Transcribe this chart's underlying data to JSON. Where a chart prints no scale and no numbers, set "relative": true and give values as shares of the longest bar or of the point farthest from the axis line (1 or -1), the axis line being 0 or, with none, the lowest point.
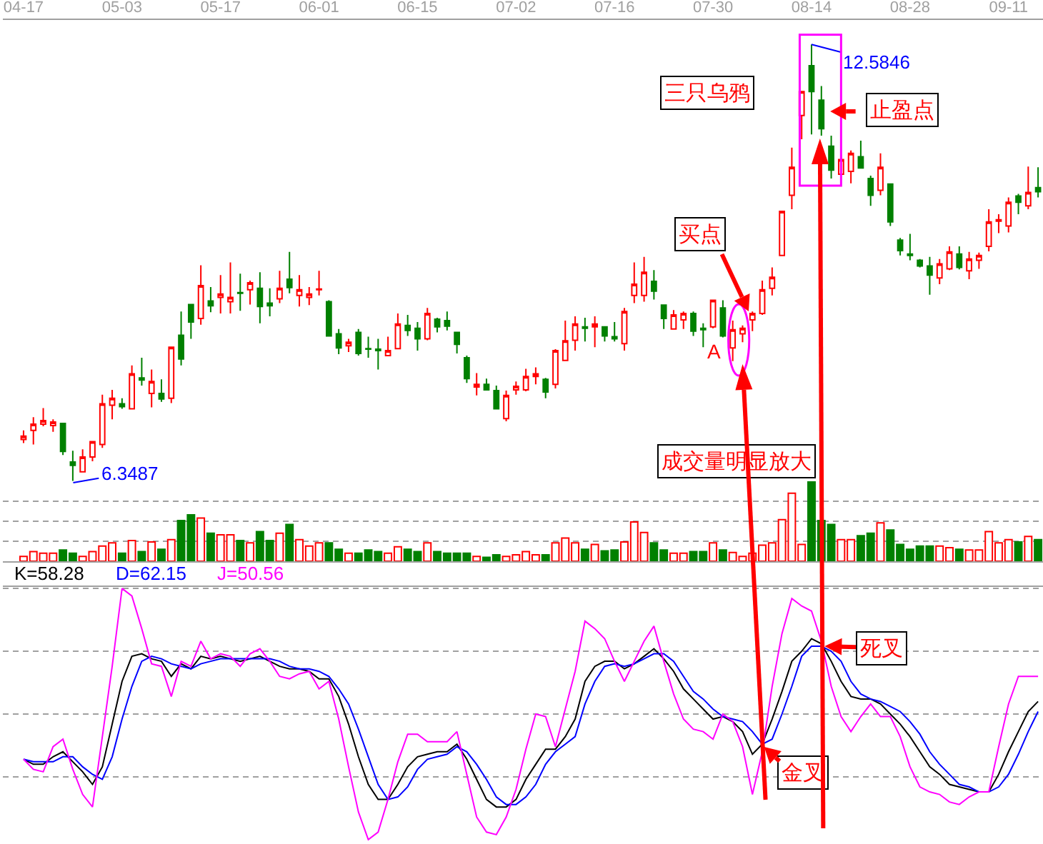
{
  "chart_data": [
    {
      "type": "candlestick",
      "tick_labels": "x",
      "categories": [
        "04-17",
        null,
        null,
        null,
        null,
        null,
        null,
        null,
        null,
        null,
        "05-03",
        null,
        null,
        null,
        null,
        null,
        null,
        null,
        null,
        null,
        "05-17",
        null,
        null,
        null,
        null,
        null,
        null,
        null,
        null,
        null,
        "06-01",
        null,
        null,
        null,
        null,
        null,
        null,
        null,
        null,
        null,
        "06-15",
        null,
        null,
        null,
        null,
        null,
        null,
        null,
        null,
        null,
        "07-02",
        null,
        null,
        null,
        null,
        null,
        null,
        null,
        null,
        null,
        "07-16",
        null,
        null,
        null,
        null,
        null,
        null,
        null,
        null,
        null,
        "07-30",
        null,
        null,
        null,
        null,
        null,
        null,
        null,
        null,
        null,
        "08-14",
        null,
        null,
        null,
        null,
        null,
        null,
        null,
        null,
        null,
        "08-28",
        null,
        null,
        null,
        null,
        null,
        null,
        null,
        null,
        null,
        "09-11",
        null,
        null,
        null
      ],
      "ohlc": [
        [
          6.94,
          7.07,
          6.89,
          6.99
        ],
        [
          7.07,
          7.26,
          6.87,
          7.16
        ],
        [
          7.16,
          7.39,
          7.13,
          7.21
        ],
        [
          7.14,
          7.23,
          7.05,
          7.19
        ],
        [
          7.17,
          7.17,
          6.72,
          6.77
        ],
        [
          6.62,
          6.78,
          6.3487,
          6.57
        ],
        [
          6.48,
          6.8,
          6.48,
          6.69
        ],
        [
          6.69,
          6.92,
          6.63,
          6.91
        ],
        [
          6.87,
          7.58,
          6.82,
          7.45
        ],
        [
          7.43,
          7.65,
          7.23,
          7.53
        ],
        [
          7.45,
          7.53,
          7.38,
          7.41
        ],
        [
          7.38,
          8.0,
          7.38,
          7.88
        ],
        [
          7.82,
          8.11,
          7.71,
          7.79
        ],
        [
          7.6,
          7.94,
          7.4,
          7.77
        ],
        [
          7.6,
          7.8,
          7.48,
          7.52
        ],
        [
          7.53,
          8.26,
          7.46,
          8.26
        ],
        [
          8.43,
          8.77,
          8.0,
          8.09
        ],
        [
          8.87,
          8.87,
          8.38,
          8.62
        ],
        [
          8.67,
          9.43,
          8.58,
          9.14
        ],
        [
          8.92,
          9.12,
          8.76,
          8.85
        ],
        [
          8.97,
          9.29,
          8.74,
          9.02
        ],
        [
          8.91,
          9.47,
          8.74,
          8.97
        ],
        [
          9.04,
          9.31,
          8.78,
          9.03
        ],
        [
          9.08,
          9.21,
          8.87,
          9.18
        ],
        [
          9.1,
          9.33,
          8.6,
          8.84
        ],
        [
          8.89,
          9.1,
          8.7,
          8.85
        ],
        [
          8.95,
          9.35,
          8.89,
          9.1
        ],
        [
          9.23,
          9.62,
          9.03,
          9.11
        ],
        [
          9.0,
          9.29,
          8.84,
          9.08
        ],
        [
          8.97,
          9.12,
          8.86,
          9.02
        ],
        [
          9.08,
          9.35,
          9.0,
          9.09
        ],
        [
          8.91,
          8.93,
          8.42,
          8.42
        ],
        [
          8.45,
          8.52,
          8.16,
          8.25
        ],
        [
          8.28,
          8.38,
          8.19,
          8.33
        ],
        [
          8.47,
          8.52,
          8.14,
          8.17
        ],
        [
          8.24,
          8.41,
          8.11,
          8.23
        ],
        [
          8.23,
          8.38,
          7.94,
          8.21
        ],
        [
          8.14,
          8.41,
          8.13,
          8.21
        ],
        [
          8.24,
          8.74,
          8.23,
          8.59
        ],
        [
          8.57,
          8.72,
          8.42,
          8.5
        ],
        [
          8.53,
          8.62,
          8.21,
          8.38
        ],
        [
          8.38,
          8.82,
          8.36,
          8.74
        ],
        [
          8.66,
          8.68,
          8.47,
          8.55
        ],
        [
          8.64,
          8.77,
          8.5,
          8.56
        ],
        [
          8.47,
          8.47,
          8.17,
          8.3
        ],
        [
          8.11,
          8.14,
          7.75,
          7.81
        ],
        [
          7.69,
          7.89,
          7.57,
          7.73
        ],
        [
          7.73,
          7.81,
          7.64,
          7.65
        ],
        [
          7.64,
          7.71,
          7.37,
          7.38
        ],
        [
          7.24,
          7.64,
          7.2,
          7.57
        ],
        [
          7.65,
          7.77,
          7.58,
          7.7
        ],
        [
          7.65,
          7.95,
          7.63,
          7.84
        ],
        [
          7.84,
          7.97,
          7.73,
          7.88
        ],
        [
          7.8,
          7.82,
          7.53,
          7.62
        ],
        [
          7.73,
          8.23,
          7.67,
          8.21
        ],
        [
          8.07,
          8.64,
          8.06,
          8.35
        ],
        [
          8.36,
          8.7,
          8.21,
          8.59
        ],
        [
          8.55,
          8.68,
          8.34,
          8.53
        ],
        [
          8.55,
          8.7,
          8.26,
          8.59
        ],
        [
          8.55,
          8.55,
          8.34,
          8.42
        ],
        [
          8.41,
          8.62,
          8.34,
          8.38
        ],
        [
          8.31,
          8.82,
          8.21,
          8.77
        ],
        [
          9.0,
          9.47,
          8.89,
          9.16
        ],
        [
          9.0,
          9.55,
          8.91,
          9.33
        ],
        [
          9.2,
          9.36,
          8.94,
          9.06
        ],
        [
          8.86,
          8.86,
          8.52,
          8.67
        ],
        [
          8.52,
          8.79,
          8.51,
          8.72
        ],
        [
          8.65,
          8.77,
          8.52,
          8.74
        ],
        [
          8.74,
          8.77,
          8.42,
          8.49
        ],
        [
          8.53,
          8.6,
          8.26,
          8.51
        ],
        [
          8.55,
          8.93,
          8.53,
          8.93
        ],
        [
          8.82,
          8.93,
          8.4,
          8.42
        ],
        [
          8.25,
          8.64,
          8.06,
          8.51
        ],
        [
          8.45,
          8.57,
          8.33,
          8.53
        ],
        [
          8.65,
          8.77,
          8.49,
          8.74
        ],
        [
          8.74,
          9.21,
          8.72,
          9.08
        ],
        [
          9.1,
          9.4,
          9.0,
          9.26
        ],
        [
          9.57,
          10.2,
          9.57,
          10.2
        ],
        [
          10.43,
          11.11,
          10.23,
          10.83
        ],
        [
          11.57,
          11.91,
          11.23,
          11.91
        ],
        [
          12.28,
          12.5846,
          11.3,
          11.91
        ],
        [
          11.79,
          11.99,
          11.28,
          11.38
        ],
        [
          11.13,
          11.28,
          10.67,
          10.79
        ],
        [
          10.73,
          11.01,
          10.72,
          10.94
        ],
        [
          10.77,
          11.07,
          10.6,
          11.03
        ],
        [
          10.98,
          11.21,
          10.81,
          10.82
        ],
        [
          10.67,
          10.71,
          10.28,
          10.43
        ],
        [
          10.5,
          11.03,
          10.43,
          10.83
        ],
        [
          10.59,
          10.6,
          9.99,
          10.05
        ],
        [
          9.79,
          9.82,
          9.57,
          9.64
        ],
        [
          9.59,
          9.88,
          9.5,
          9.57
        ],
        [
          9.5,
          9.52,
          9.4,
          9.42
        ],
        [
          9.42,
          9.55,
          9.01,
          9.29
        ],
        [
          9.25,
          9.52,
          9.16,
          9.45
        ],
        [
          9.38,
          9.7,
          9.36,
          9.62
        ],
        [
          9.59,
          9.7,
          9.37,
          9.4
        ],
        [
          9.35,
          9.62,
          9.23,
          9.52
        ],
        [
          9.5,
          9.61,
          9.38,
          9.57
        ],
        [
          9.7,
          10.23,
          9.63,
          10.05
        ],
        [
          10.06,
          10.16,
          9.89,
          10.08
        ],
        [
          9.99,
          10.4,
          9.9,
          10.33
        ],
        [
          10.42,
          10.45,
          10.16,
          10.33
        ],
        [
          10.28,
          10.84,
          10.23,
          10.47
        ],
        [
          10.54,
          10.83,
          10.4,
          10.48
        ]
      ],
      "colors": [
        "#ff0000",
        "#ff0000",
        "#ff0000",
        "#ff0000",
        "#008000",
        "#008000",
        "#ff0000",
        "#ff0000",
        "#ff0000",
        "#ff0000",
        "#008000",
        "#ff0000",
        "#008000",
        "#ff0000",
        "#008000",
        "#ff0000",
        "#008000",
        "#008000",
        "#ff0000",
        "#008000",
        "#ff0000",
        "#ff0000",
        "#008000",
        "#ff0000",
        "#008000",
        "#008000",
        "#ff0000",
        "#008000",
        "#ff0000",
        "#ff0000",
        "#ff0000",
        "#008000",
        "#008000",
        "#ff0000",
        "#008000",
        "#008000",
        "#008000",
        "#ff0000",
        "#ff0000",
        "#008000",
        "#008000",
        "#ff0000",
        "#008000",
        "#008000",
        "#008000",
        "#008000",
        "#ff0000",
        "#008000",
        "#008000",
        "#ff0000",
        "#ff0000",
        "#ff0000",
        "#ff0000",
        "#008000",
        "#ff0000",
        "#ff0000",
        "#ff0000",
        "#008000",
        "#ff0000",
        "#008000",
        "#008000",
        "#ff0000",
        "#ff0000",
        "#ff0000",
        "#008000",
        "#008000",
        "#ff0000",
        "#ff0000",
        "#008000",
        "#008000",
        "#ff0000",
        "#008000",
        "#ff0000",
        "#ff0000",
        "#ff0000",
        "#ff0000",
        "#ff0000",
        "#ff0000",
        "#ff0000",
        "#ff0000",
        "#008000",
        "#008000",
        "#008000",
        "#ff0000",
        "#ff0000",
        "#008000",
        "#008000",
        "#ff0000",
        "#008000",
        "#008000",
        "#008000",
        "#008000",
        "#008000",
        "#ff0000",
        "#ff0000",
        "#008000",
        "#ff0000",
        "#ff0000",
        "#ff0000",
        "#ff0000",
        "#ff0000",
        "#008000",
        "#ff0000",
        "#008000"
      ],
      "annotations": [
        {
          "text": "12.5846",
          "x": "08-14",
          "y": 12.5846
        },
        "6.3487",
        "三只乌鸦",
        "止盈点",
        "买点",
        "A",
        "成交量明显放大"
      ]
    },
    {
      "type": "bar",
      "relative": true,
      "grid": "y",
      "categories": [
        null,
        null,
        null,
        null,
        null,
        null,
        null,
        null,
        null,
        null,
        null,
        null,
        null,
        null,
        null,
        null,
        null,
        null,
        null,
        null,
        null,
        null,
        null,
        null,
        null,
        null,
        null,
        null,
        null,
        null,
        null,
        null,
        null,
        null,
        null,
        null,
        null,
        null,
        null,
        null,
        null,
        null,
        null,
        null,
        null,
        null,
        null,
        null,
        null,
        null,
        null,
        null,
        null,
        null,
        null,
        null,
        null,
        null,
        null,
        null,
        null,
        null,
        null,
        null,
        null,
        null,
        null,
        null,
        null,
        null,
        null,
        null,
        null,
        null,
        null,
        null,
        null,
        null,
        null,
        null,
        null,
        null,
        null,
        null,
        null,
        null,
        null,
        null,
        null,
        null,
        null,
        null,
        null,
        null,
        null,
        null,
        null,
        null,
        null,
        null,
        null,
        null,
        null,
        null
      ],
      "values": [
        0.06,
        0.12,
        0.1,
        0.1,
        0.14,
        0.1,
        0.06,
        0.12,
        0.19,
        0.23,
        0.1,
        0.26,
        0.12,
        0.24,
        0.15,
        0.27,
        0.51,
        0.58,
        0.54,
        0.35,
        0.33,
        0.33,
        0.26,
        0.23,
        0.37,
        0.26,
        0.35,
        0.46,
        0.27,
        0.19,
        0.23,
        0.23,
        0.15,
        0.1,
        0.1,
        0.14,
        0.12,
        0.1,
        0.18,
        0.15,
        0.12,
        0.23,
        0.12,
        0.1,
        0.1,
        0.1,
        0.06,
        0.05,
        0.08,
        0.06,
        0.08,
        0.12,
        0.08,
        0.08,
        0.23,
        0.29,
        0.23,
        0.15,
        0.21,
        0.13,
        0.14,
        0.24,
        0.49,
        0.36,
        0.23,
        0.14,
        0.1,
        0.1,
        0.12,
        0.12,
        0.23,
        0.14,
        0.11,
        0.06,
        0.1,
        0.2,
        0.23,
        0.52,
        0.85,
        0.21,
        1,
        0.51,
        0.46,
        0.27,
        0.27,
        0.32,
        0.35,
        0.48,
        0.39,
        0.21,
        0.15,
        0.19,
        0.19,
        0.19,
        0.17,
        0.15,
        0.14,
        0.14,
        0.37,
        0.23,
        0.27,
        0.24,
        0.31,
        0.27
      ],
      "colors": [
        "#ff0000",
        "#ff0000",
        "#ff0000",
        "#ff0000",
        "#008000",
        "#008000",
        "#ff0000",
        "#ff0000",
        "#ff0000",
        "#ff0000",
        "#008000",
        "#ff0000",
        "#008000",
        "#ff0000",
        "#008000",
        "#ff0000",
        "#008000",
        "#008000",
        "#ff0000",
        "#008000",
        "#ff0000",
        "#ff0000",
        "#008000",
        "#ff0000",
        "#008000",
        "#008000",
        "#ff0000",
        "#008000",
        "#ff0000",
        "#ff0000",
        "#ff0000",
        "#008000",
        "#008000",
        "#ff0000",
        "#008000",
        "#008000",
        "#008000",
        "#ff0000",
        "#ff0000",
        "#008000",
        "#008000",
        "#ff0000",
        "#008000",
        "#008000",
        "#008000",
        "#008000",
        "#ff0000",
        "#008000",
        "#008000",
        "#ff0000",
        "#ff0000",
        "#ff0000",
        "#ff0000",
        "#008000",
        "#ff0000",
        "#ff0000",
        "#ff0000",
        "#008000",
        "#ff0000",
        "#008000",
        "#008000",
        "#ff0000",
        "#ff0000",
        "#ff0000",
        "#008000",
        "#008000",
        "#ff0000",
        "#ff0000",
        "#008000",
        "#008000",
        "#ff0000",
        "#008000",
        "#ff0000",
        "#ff0000",
        "#ff0000",
        "#ff0000",
        "#ff0000",
        "#ff0000",
        "#ff0000",
        "#ff0000",
        "#008000",
        "#008000",
        "#008000",
        "#ff0000",
        "#ff0000",
        "#008000",
        "#008000",
        "#ff0000",
        "#008000",
        "#008000",
        "#008000",
        "#008000",
        "#008000",
        "#ff0000",
        "#ff0000",
        "#008000",
        "#ff0000",
        "#ff0000",
        "#ff0000",
        "#ff0000",
        "#ff0000",
        "#008000",
        "#ff0000",
        "#008000"
      ]
    },
    {
      "type": "line",
      "relative": true,
      "grid": "y",
      "legend": "top left",
      "categories": [
        null,
        null,
        null,
        null,
        null,
        null,
        null,
        null,
        null,
        null,
        null,
        null,
        null,
        null,
        null,
        null,
        null,
        null,
        null,
        null,
        null,
        null,
        null,
        null,
        null,
        null,
        null,
        null,
        null,
        null,
        null,
        null,
        null,
        null,
        null,
        null,
        null,
        null,
        null,
        null,
        null,
        null,
        null,
        null,
        null,
        null,
        null,
        null,
        null,
        null,
        null,
        null,
        null,
        null,
        null,
        null,
        null,
        null,
        null,
        null,
        null,
        null,
        null,
        null,
        null,
        null,
        null,
        null,
        null,
        null,
        null,
        null,
        null,
        null,
        null,
        null,
        null,
        null,
        null,
        null,
        null,
        null,
        null,
        null,
        null,
        null,
        null,
        null,
        null,
        null,
        null,
        null,
        null,
        null,
        null,
        null,
        null,
        null,
        null,
        null,
        null,
        null,
        null,
        null
      ],
      "series": [
        {
          "name": "K=58.28",
          "color": "#000000",
          "values": [
            0.32,
            0.3,
            0.3,
            0.33,
            0.35,
            0.31,
            0.27,
            0.22,
            0.29,
            0.46,
            0.63,
            0.73,
            0.74,
            0.72,
            0.71,
            0.65,
            0.7,
            0.68,
            0.73,
            0.72,
            0.73,
            0.72,
            0.71,
            0.72,
            0.73,
            0.71,
            0.69,
            0.68,
            0.68,
            0.67,
            0.64,
            0.64,
            0.57,
            0.46,
            0.33,
            0.22,
            0.16,
            0.16,
            0.22,
            0.29,
            0.33,
            0.34,
            0.35,
            0.35,
            0.38,
            0.32,
            0.24,
            0.16,
            0.13,
            0.13,
            0.16,
            0.24,
            0.3,
            0.36,
            0.36,
            0.41,
            0.48,
            0.63,
            0.69,
            0.71,
            0.71,
            0.68,
            0.7,
            0.73,
            0.76,
            0.72,
            0.67,
            0.6,
            0.56,
            0.52,
            0.48,
            0.49,
            0.47,
            0.43,
            0.34,
            0.38,
            0.48,
            0.59,
            0.71,
            0.75,
            0.8,
            0.78,
            0.71,
            0.63,
            0.57,
            0.56,
            0.56,
            0.54,
            0.5,
            0.46,
            0.41,
            0.35,
            0.29,
            0.26,
            0.22,
            0.21,
            0.2,
            0.19,
            0.19,
            0.26,
            0.35,
            0.43,
            0.51,
            0.55
          ]
        },
        {
          "name": "D=62.15",
          "color": "#0000ff",
          "values": [
            0.32,
            0.31,
            0.31,
            0.31,
            0.33,
            0.33,
            0.29,
            0.26,
            0.24,
            0.33,
            0.48,
            0.61,
            0.71,
            0.73,
            0.72,
            0.7,
            0.69,
            0.68,
            0.7,
            0.71,
            0.72,
            0.72,
            0.72,
            0.72,
            0.72,
            0.72,
            0.71,
            0.69,
            0.68,
            0.68,
            0.67,
            0.65,
            0.6,
            0.54,
            0.44,
            0.33,
            0.22,
            0.16,
            0.17,
            0.21,
            0.28,
            0.32,
            0.33,
            0.34,
            0.37,
            0.35,
            0.3,
            0.24,
            0.17,
            0.14,
            0.14,
            0.17,
            0.22,
            0.3,
            0.35,
            0.38,
            0.41,
            0.54,
            0.63,
            0.69,
            0.7,
            0.69,
            0.7,
            0.72,
            0.74,
            0.74,
            0.71,
            0.65,
            0.59,
            0.56,
            0.52,
            0.49,
            0.48,
            0.47,
            0.43,
            0.38,
            0.4,
            0.5,
            0.61,
            0.73,
            0.77,
            0.77,
            0.75,
            0.71,
            0.63,
            0.58,
            0.56,
            0.55,
            0.53,
            0.51,
            0.47,
            0.42,
            0.35,
            0.3,
            0.26,
            0.22,
            0.21,
            0.19,
            0.19,
            0.21,
            0.26,
            0.34,
            0.43,
            0.51
          ]
        },
        {
          "name": "J=50.56",
          "color": "#ff00ff",
          "values": [
            0.32,
            0.28,
            0.27,
            0.37,
            0.4,
            0.28,
            0.18,
            0.13,
            0.41,
            0.69,
            1,
            0.97,
            0.84,
            0.7,
            0.69,
            0.57,
            0.71,
            0.69,
            0.79,
            0.72,
            0.74,
            0.73,
            0.69,
            0.74,
            0.76,
            0.71,
            0.65,
            0.64,
            0.66,
            0.67,
            0.6,
            0.63,
            0.48,
            0.29,
            0.11,
            0,
            0.03,
            0.16,
            0.31,
            0.42,
            0.42,
            0.39,
            0.39,
            0.39,
            0.43,
            0.26,
            0.09,
            0.03,
            0.02,
            0.09,
            0.2,
            0.36,
            0.5,
            0.49,
            0.37,
            0.52,
            0.67,
            0.87,
            0.84,
            0.8,
            0.71,
            0.63,
            0.71,
            0.79,
            0.85,
            0.71,
            0.58,
            0.48,
            0.44,
            0.43,
            0.4,
            0.5,
            0.47,
            0.37,
            0.18,
            0.35,
            0.61,
            0.82,
            0.96,
            0.93,
            0.91,
            0.79,
            0.61,
            0.49,
            0.43,
            0.49,
            0.54,
            0.49,
            0.49,
            0.41,
            0.29,
            0.21,
            0.19,
            0.18,
            0.15,
            0.14,
            0.17,
            0.19,
            0.19,
            0.37,
            0.54,
            0.65,
            0.65,
            0.65
          ]
        }
      ],
      "annotations": [
        {
          "text": "死叉",
          "y": 0.77
        },
        "金叉"
      ]
    }
  ]
}
